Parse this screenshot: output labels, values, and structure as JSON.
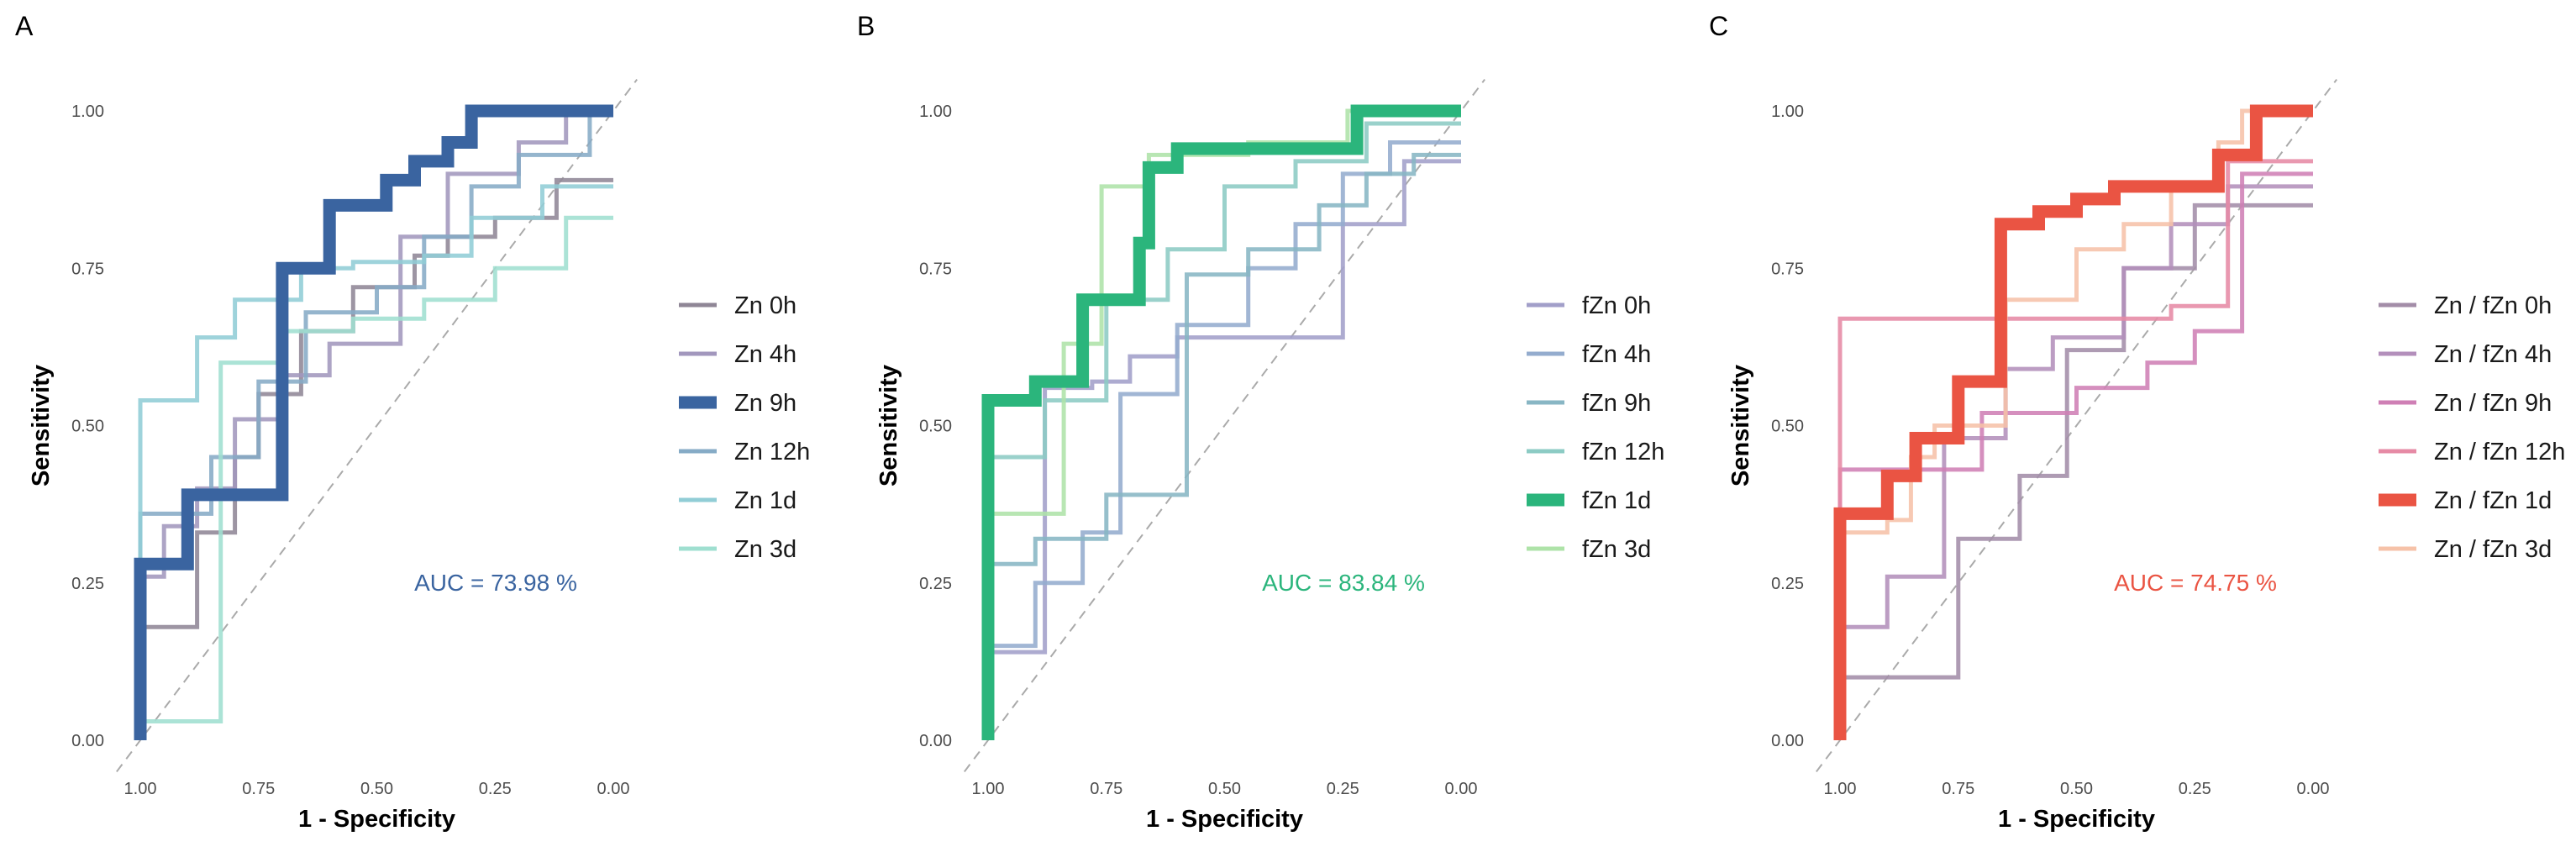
{
  "chart_data": [
    {
      "type": "line",
      "panel": "A",
      "xlabel": "1 - Specificity",
      "ylabel": "Sensitivity",
      "xlim": [
        1.0,
        0.0
      ],
      "ylim": [
        0.0,
        1.0
      ],
      "x_ticks": [
        "1.00",
        "0.75",
        "0.50",
        "0.25",
        "0.00"
      ],
      "y_ticks": [
        "0.00",
        "0.25",
        "0.50",
        "0.75",
        "1.00"
      ],
      "grid": false,
      "diagonal_reference": true,
      "legend_position": "right",
      "annotation": {
        "text": "AUC = 73.98 %",
        "color": "#3a64a0"
      },
      "series": [
        {
          "name": "Zn 0h",
          "color": "#8f8696",
          "highlight": false,
          "x": [
            1.0,
            1.0,
            0.88,
            0.88,
            0.8,
            0.8,
            0.75,
            0.75,
            0.66,
            0.66,
            0.55,
            0.55,
            0.42,
            0.42,
            0.35,
            0.35,
            0.25,
            0.25,
            0.12,
            0.12,
            0.0
          ],
          "y": [
            0.0,
            0.18,
            0.18,
            0.33,
            0.33,
            0.45,
            0.45,
            0.55,
            0.55,
            0.65,
            0.65,
            0.72,
            0.72,
            0.77,
            0.77,
            0.8,
            0.8,
            0.83,
            0.83,
            0.89,
            0.89
          ]
        },
        {
          "name": "Zn 4h",
          "color": "#a297bd",
          "highlight": false,
          "x": [
            1.0,
            1.0,
            0.95,
            0.95,
            0.88,
            0.88,
            0.8,
            0.8,
            0.7,
            0.7,
            0.6,
            0.6,
            0.45,
            0.45,
            0.35,
            0.35,
            0.2,
            0.2,
            0.1,
            0.1,
            0.0
          ],
          "y": [
            0.0,
            0.26,
            0.26,
            0.34,
            0.34,
            0.4,
            0.4,
            0.51,
            0.51,
            0.58,
            0.58,
            0.63,
            0.63,
            0.8,
            0.8,
            0.9,
            0.9,
            0.95,
            0.95,
            1.0,
            1.0
          ]
        },
        {
          "name": "Zn 9h",
          "color": "#3a64a0",
          "highlight": true,
          "x": [
            1.0,
            1.0,
            0.9,
            0.9,
            0.7,
            0.7,
            0.6,
            0.6,
            0.48,
            0.48,
            0.42,
            0.42,
            0.35,
            0.35,
            0.3,
            0.3,
            0.0
          ],
          "y": [
            0.0,
            0.28,
            0.28,
            0.39,
            0.39,
            0.75,
            0.75,
            0.85,
            0.85,
            0.89,
            0.89,
            0.92,
            0.92,
            0.95,
            0.95,
            1.0,
            1.0
          ]
        },
        {
          "name": "Zn 12h",
          "color": "#86abc6",
          "highlight": false,
          "x": [
            1.0,
            1.0,
            0.85,
            0.85,
            0.75,
            0.75,
            0.65,
            0.65,
            0.5,
            0.5,
            0.4,
            0.4,
            0.3,
            0.3,
            0.2,
            0.2,
            0.05,
            0.05,
            0.0
          ],
          "y": [
            0.0,
            0.36,
            0.36,
            0.45,
            0.45,
            0.57,
            0.57,
            0.68,
            0.68,
            0.72,
            0.72,
            0.8,
            0.8,
            0.88,
            0.88,
            0.93,
            0.93,
            1.0,
            1.0
          ]
        },
        {
          "name": "Zn 1d",
          "color": "#91cdd6",
          "highlight": false,
          "x": [
            1.0,
            1.0,
            0.88,
            0.88,
            0.8,
            0.8,
            0.66,
            0.66,
            0.55,
            0.55,
            0.4,
            0.4,
            0.3,
            0.3,
            0.15,
            0.15,
            0.0
          ],
          "y": [
            0.0,
            0.54,
            0.54,
            0.64,
            0.64,
            0.7,
            0.7,
            0.75,
            0.75,
            0.76,
            0.76,
            0.77,
            0.77,
            0.83,
            0.83,
            0.88,
            0.88
          ]
        },
        {
          "name": "Zn 3d",
          "color": "#9fdfd0",
          "highlight": false,
          "x": [
            1.0,
            1.0,
            0.83,
            0.83,
            0.7,
            0.7,
            0.55,
            0.55,
            0.4,
            0.4,
            0.25,
            0.25,
            0.1,
            0.1,
            0.0
          ],
          "y": [
            0.0,
            0.03,
            0.03,
            0.6,
            0.6,
            0.65,
            0.65,
            0.67,
            0.67,
            0.7,
            0.7,
            0.75,
            0.75,
            0.83,
            0.83
          ]
        }
      ]
    },
    {
      "type": "line",
      "panel": "B",
      "xlabel": "1 - Specificity",
      "ylabel": "Sensitivity",
      "xlim": [
        1.0,
        0.0
      ],
      "ylim": [
        0.0,
        1.0
      ],
      "x_ticks": [
        "1.00",
        "0.75",
        "0.50",
        "0.25",
        "0.00"
      ],
      "y_ticks": [
        "0.00",
        "0.25",
        "0.50",
        "0.75",
        "1.00"
      ],
      "grid": false,
      "diagonal_reference": true,
      "legend_position": "right",
      "annotation": {
        "text": "AUC = 83.84 %",
        "color": "#2bb57c"
      },
      "series": [
        {
          "name": "fZn 0h",
          "color": "#a29fc9",
          "highlight": false,
          "x": [
            1.0,
            1.0,
            0.88,
            0.88,
            0.78,
            0.78,
            0.7,
            0.7,
            0.6,
            0.6,
            0.5,
            0.5,
            0.25,
            0.25,
            0.15,
            0.15,
            0.12,
            0.12,
            0.0
          ],
          "y": [
            0.0,
            0.14,
            0.14,
            0.56,
            0.56,
            0.57,
            0.57,
            0.61,
            0.61,
            0.64,
            0.64,
            0.64,
            0.64,
            0.82,
            0.82,
            0.82,
            0.82,
            0.92,
            0.92
          ]
        },
        {
          "name": "fZn 4h",
          "color": "#94acce",
          "highlight": false,
          "x": [
            1.0,
            1.0,
            0.9,
            0.9,
            0.8,
            0.8,
            0.72,
            0.72,
            0.6,
            0.6,
            0.45,
            0.45,
            0.35,
            0.35,
            0.25,
            0.25,
            0.15,
            0.15,
            0.0
          ],
          "y": [
            0.0,
            0.15,
            0.15,
            0.25,
            0.25,
            0.33,
            0.33,
            0.55,
            0.55,
            0.66,
            0.66,
            0.75,
            0.75,
            0.82,
            0.82,
            0.9,
            0.9,
            0.95,
            0.95
          ]
        },
        {
          "name": "fZn 9h",
          "color": "#88b6c4",
          "highlight": false,
          "x": [
            1.0,
            1.0,
            0.9,
            0.9,
            0.75,
            0.75,
            0.58,
            0.58,
            0.58,
            0.58,
            0.45,
            0.45,
            0.3,
            0.3,
            0.2,
            0.2,
            0.1,
            0.1,
            0.0
          ],
          "y": [
            0.0,
            0.28,
            0.28,
            0.32,
            0.32,
            0.39,
            0.39,
            0.65,
            0.65,
            0.74,
            0.74,
            0.78,
            0.78,
            0.85,
            0.85,
            0.9,
            0.9,
            0.93,
            0.93
          ]
        },
        {
          "name": "fZn 12h",
          "color": "#8ccbc4",
          "highlight": false,
          "x": [
            1.0,
            1.0,
            0.88,
            0.88,
            0.75,
            0.75,
            0.62,
            0.62,
            0.5,
            0.5,
            0.35,
            0.35,
            0.2,
            0.2,
            0.0
          ],
          "y": [
            0.0,
            0.45,
            0.45,
            0.54,
            0.54,
            0.7,
            0.7,
            0.78,
            0.78,
            0.88,
            0.88,
            0.92,
            0.92,
            0.98,
            0.98
          ]
        },
        {
          "name": "fZn 1d",
          "color": "#2bb57c",
          "highlight": true,
          "x": [
            1.0,
            1.0,
            0.9,
            0.9,
            0.8,
            0.8,
            0.68,
            0.68,
            0.66,
            0.66,
            0.6,
            0.6,
            0.4,
            0.4,
            0.22,
            0.22,
            0.0
          ],
          "y": [
            0.0,
            0.54,
            0.54,
            0.57,
            0.57,
            0.7,
            0.7,
            0.79,
            0.79,
            0.91,
            0.91,
            0.94,
            0.94,
            0.94,
            0.94,
            1.0,
            1.0
          ]
        },
        {
          "name": "fZn 3d",
          "color": "#aee3a8",
          "highlight": false,
          "x": [
            1.0,
            1.0,
            0.84,
            0.84,
            0.76,
            0.76,
            0.66,
            0.66,
            0.45,
            0.45,
            0.33,
            0.33,
            0.24,
            0.24,
            0.0
          ],
          "y": [
            0.0,
            0.36,
            0.36,
            0.63,
            0.63,
            0.88,
            0.88,
            0.93,
            0.93,
            0.95,
            0.95,
            0.95,
            0.95,
            1.0,
            1.0
          ]
        }
      ]
    },
    {
      "type": "line",
      "panel": "C",
      "xlabel": "1 - Specificity",
      "ylabel": "Sensitivity",
      "xlim": [
        1.0,
        0.0
      ],
      "ylim": [
        0.0,
        1.0
      ],
      "x_ticks": [
        "1.00",
        "0.75",
        "0.50",
        "0.25",
        "0.00"
      ],
      "y_ticks": [
        "0.00",
        "0.25",
        "0.50",
        "0.75",
        "1.00"
      ],
      "grid": false,
      "diagonal_reference": true,
      "legend_position": "right",
      "annotation": {
        "text": "AUC = 74.75 %",
        "color": "#ea5443"
      },
      "series": [
        {
          "name": "Zn / fZn 0h",
          "color": "#a38da8",
          "highlight": false,
          "x": [
            1.0,
            1.0,
            0.75,
            0.75,
            0.62,
            0.62,
            0.52,
            0.52,
            0.4,
            0.4,
            0.25,
            0.25,
            0.1,
            0.1,
            0.0
          ],
          "y": [
            0.0,
            0.1,
            0.1,
            0.32,
            0.32,
            0.42,
            0.42,
            0.62,
            0.62,
            0.75,
            0.75,
            0.85,
            0.85,
            0.85,
            0.85
          ]
        },
        {
          "name": "Zn / fZn 4h",
          "color": "#b38fbb",
          "highlight": false,
          "x": [
            1.0,
            1.0,
            0.9,
            0.9,
            0.78,
            0.78,
            0.65,
            0.65,
            0.55,
            0.55,
            0.4,
            0.4,
            0.3,
            0.3,
            0.18,
            0.18,
            0.0
          ],
          "y": [
            0.0,
            0.18,
            0.18,
            0.26,
            0.26,
            0.48,
            0.48,
            0.59,
            0.59,
            0.64,
            0.64,
            0.75,
            0.75,
            0.82,
            0.82,
            0.88,
            0.88
          ]
        },
        {
          "name": "Zn / fZn 9h",
          "color": "#cf7fb5",
          "highlight": false,
          "x": [
            1.0,
            1.0,
            0.7,
            0.7,
            0.5,
            0.5,
            0.35,
            0.35,
            0.25,
            0.25,
            0.15,
            0.15,
            0.0
          ],
          "y": [
            0.0,
            0.43,
            0.43,
            0.52,
            0.52,
            0.56,
            0.56,
            0.6,
            0.6,
            0.65,
            0.65,
            0.9,
            0.9
          ]
        },
        {
          "name": "Zn / fZn 12h",
          "color": "#e68aa5",
          "highlight": false,
          "x": [
            1.0,
            1.0,
            0.3,
            0.3,
            0.18,
            0.18,
            0.0
          ],
          "y": [
            0.0,
            0.67,
            0.67,
            0.69,
            0.69,
            0.92,
            0.92
          ]
        },
        {
          "name": "Zn / fZn 1d",
          "color": "#ea5443",
          "highlight": true,
          "x": [
            1.0,
            1.0,
            0.9,
            0.9,
            0.84,
            0.84,
            0.75,
            0.75,
            0.66,
            0.66,
            0.58,
            0.58,
            0.5,
            0.5,
            0.42,
            0.42,
            0.25,
            0.25,
            0.2,
            0.2,
            0.12,
            0.12,
            0.0
          ],
          "y": [
            0.0,
            0.36,
            0.36,
            0.42,
            0.42,
            0.48,
            0.48,
            0.57,
            0.57,
            0.82,
            0.82,
            0.84,
            0.84,
            0.86,
            0.86,
            0.88,
            0.88,
            0.88,
            0.88,
            0.93,
            0.93,
            1.0,
            1.0
          ]
        },
        {
          "name": "Zn / fZn 3d",
          "color": "#f6c2a8",
          "highlight": false,
          "x": [
            1.0,
            1.0,
            0.9,
            0.9,
            0.85,
            0.85,
            0.8,
            0.8,
            0.65,
            0.65,
            0.5,
            0.5,
            0.4,
            0.4,
            0.3,
            0.3,
            0.2,
            0.2,
            0.15,
            0.15,
            0.0
          ],
          "y": [
            0.0,
            0.33,
            0.33,
            0.35,
            0.35,
            0.45,
            0.45,
            0.5,
            0.5,
            0.7,
            0.7,
            0.78,
            0.78,
            0.82,
            0.82,
            0.88,
            0.88,
            0.95,
            0.95,
            1.0,
            1.0
          ]
        }
      ]
    }
  ]
}
